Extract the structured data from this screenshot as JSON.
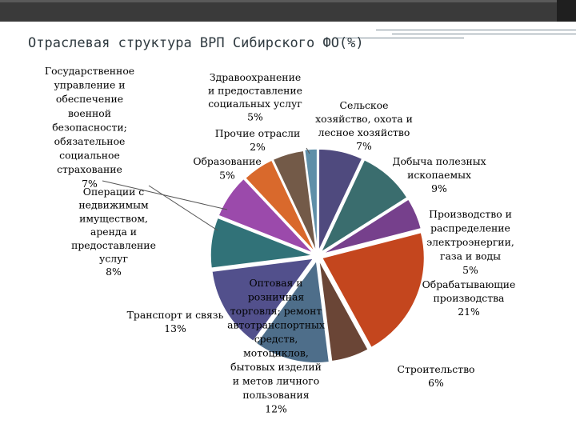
{
  "chart_data": {
    "type": "pie",
    "title": "Отраслевая структура ВРП Сибирского ФО(%)",
    "slices": [
      {
        "lines": [
          "Сельское",
          "хозяйство, охота и",
          "лесное хозяйство",
          "7%"
        ],
        "value": 7,
        "color": "#4f4a7e"
      },
      {
        "lines": [
          "Добыча полезных",
          "ископаемых",
          "9%"
        ],
        "value": 9,
        "color": "#3a6d6e"
      },
      {
        "lines": [
          "Производство и",
          "распределение",
          "электроэнергии,",
          "газа и воды",
          "5%"
        ],
        "value": 5,
        "color": "#76408c"
      },
      {
        "lines": [
          "Обрабатывающие",
          "производства",
          "21%"
        ],
        "value": 21,
        "color": "#c4461e"
      },
      {
        "lines": [
          "Строительство",
          "6%"
        ],
        "value": 6,
        "color": "#6a4536"
      },
      {
        "lines": [
          "Оптовая и",
          "розничная",
          "торговля; ремонт",
          "автотранспортных",
          "средств,",
          "мотоциклов,",
          "бытовых изделий",
          "и метов личного",
          "пользования",
          "12%"
        ],
        "value": 12,
        "color": "#4e6e8a"
      },
      {
        "lines": [
          "Транспорт и связь",
          "13%"
        ],
        "value": 13,
        "color": "#52508c"
      },
      {
        "lines": [
          "Операции с",
          "недвижимым",
          "имуществом,",
          "аренда и",
          "предоставление",
          "услуг",
          "8%"
        ],
        "value": 8,
        "color": "#317278"
      },
      {
        "lines": [
          "Государственное",
          "управление и",
          "обеспечение",
          "военной",
          "безопасности;",
          "обязательное",
          "социальное",
          "страхование",
          "7%"
        ],
        "value": 7,
        "color": "#9b4aab"
      },
      {
        "lines": [
          "Образование",
          "5%"
        ],
        "value": 5,
        "color": "#d9692c"
      },
      {
        "lines": [
          "Здравоохранение",
          "и предоставление",
          "социальных услуг",
          "5%"
        ],
        "value": 5,
        "color": "#735a48"
      },
      {
        "lines": [
          "Прочие отрасли",
          "2%"
        ],
        "value": 2,
        "color": "#5f8fa8"
      }
    ]
  }
}
